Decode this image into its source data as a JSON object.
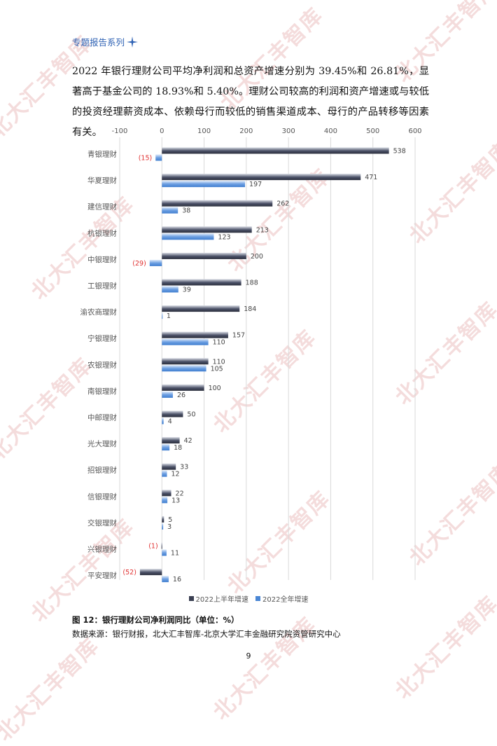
{
  "header": {
    "title": "专题报告系列"
  },
  "body_paragraph": "2022 年银行理财公司平均净利润和总资产增速分别为 39.45%和 26.81%，显著高于基金公司的 18.93%和 5.40%。理财公司较高的利润和资产增速或与较低的投资经理薪资成本、依赖母行而较低的销售渠道成本、母行的产品转移等因素有关。",
  "watermark_text": "北大汇丰智库",
  "caption": "图 12：银行理财公司净利润同比（单位：%）",
  "source": "数据来源：银行财报，北大汇丰智库-北京大学汇丰金融研究院资管研究中心",
  "page_number": "9",
  "colors": {
    "h1": "#3a3f52",
    "fy": "#4a86d4",
    "negative_label": "#e03030",
    "grid": "#d9d9d9"
  },
  "chart_data": {
    "type": "bar",
    "orientation": "horizontal",
    "title": "",
    "xlim": [
      -100,
      600
    ],
    "xticks": [
      "-100",
      "0",
      "100",
      "200",
      "300",
      "400",
      "500",
      "600"
    ],
    "xtick_values": [
      -100,
      0,
      100,
      200,
      300,
      400,
      500,
      600
    ],
    "grid": true,
    "legend_position": "bottom",
    "categories": [
      "青银理财",
      "华夏理财",
      "建信理财",
      "杭银理财",
      "中银理财",
      "工银理财",
      "渝农商理财",
      "宁银理财",
      "农银理财",
      "南银理财",
      "中邮理财",
      "光大理财",
      "招银理财",
      "信银理财",
      "交银理财",
      "兴银理财",
      "平安理财"
    ],
    "series": [
      {
        "name": "2022上半年增速",
        "values": [
          538,
          471,
          262,
          213,
          200,
          188,
          184,
          157,
          110,
          100,
          50,
          42,
          33,
          22,
          5,
          -1,
          -52
        ],
        "labels": [
          "538",
          "471",
          "262",
          "213",
          "200",
          "188",
          "184",
          "157",
          "110",
          "100",
          "50",
          "42",
          "33",
          "22",
          "5",
          "(1)",
          "(52)"
        ]
      },
      {
        "name": "2022全年增速",
        "values": [
          -15,
          197,
          38,
          123,
          -29,
          39,
          1,
          110,
          105,
          26,
          4,
          18,
          12,
          13,
          3,
          11,
          16
        ],
        "labels": [
          "(15)",
          "197",
          "38",
          "123",
          "(29)",
          "39",
          "1",
          "110",
          "105",
          "26",
          "4",
          "18",
          "12",
          "13",
          "3",
          "11",
          "16"
        ]
      }
    ]
  }
}
